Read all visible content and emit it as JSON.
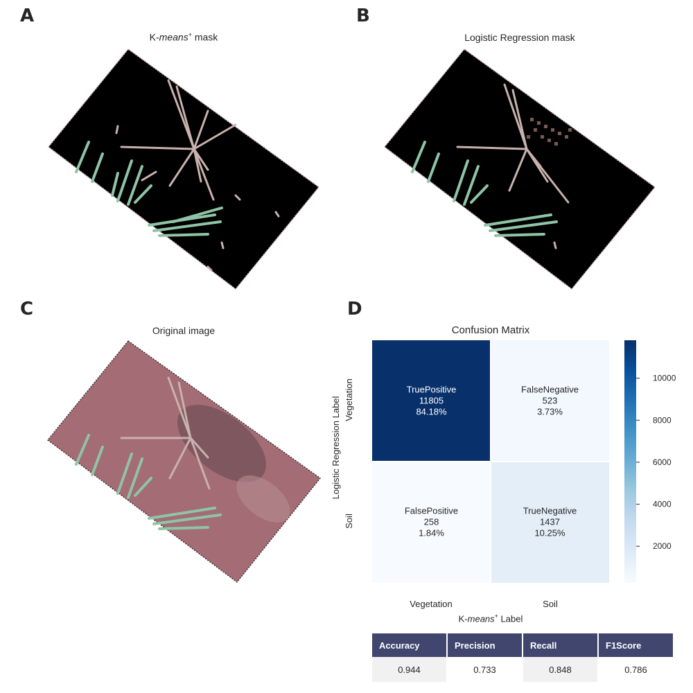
{
  "panels": {
    "A": {
      "letter": "A",
      "title_prefix": "K-",
      "title_italic": "means",
      "title_sup": "+",
      "title_suffix": " mask"
    },
    "B": {
      "letter": "B",
      "title": "Logistic Regression mask"
    },
    "C": {
      "letter": "C",
      "title": "Original image"
    },
    "D": {
      "letter": "D"
    }
  },
  "colors": {
    "background_mask": "#000000",
    "soil": "#a46c74",
    "grass_green": "#8fc4a6",
    "grass_pale": "#c9b2ad",
    "cmap_dark": "#08306b",
    "cmap_light": "#f7fbff",
    "table_header": "#40466e"
  },
  "chart_data": {
    "type": "heatmap",
    "title": "Confusion Matrix",
    "row_labels": [
      "Vegetation",
      "Soil"
    ],
    "col_labels": [
      "Vegetation",
      "Soil"
    ],
    "ylabel": "Logistic Regression Label",
    "xlabel_prefix": "K-",
    "xlabel_italic": "means",
    "xlabel_sup": "+",
    "xlabel_suffix": " Label",
    "cells": [
      [
        {
          "name": "TruePositive",
          "count": "11805",
          "percent": "84.18%",
          "value": 11805
        },
        {
          "name": "FalseNegative",
          "count": "523",
          "percent": "3.73%",
          "value": 523
        }
      ],
      [
        {
          "name": "FalsePositive",
          "count": "258",
          "percent": "1.84%",
          "value": 258
        },
        {
          "name": "TrueNegative",
          "count": "1437",
          "percent": "10.25%",
          "value": 1437
        }
      ]
    ],
    "colorbar": {
      "min": 258,
      "max": 11805,
      "ticks": [
        2000,
        4000,
        6000,
        8000,
        10000
      ],
      "tick_labels": [
        "2000",
        "4000",
        "6000",
        "8000",
        "10000"
      ]
    },
    "metrics": {
      "headers": [
        "Accuracy",
        "Precision",
        "Recall",
        "F1Score"
      ],
      "values": [
        "0.944",
        "0.733",
        "0.848",
        "0.786"
      ]
    }
  }
}
